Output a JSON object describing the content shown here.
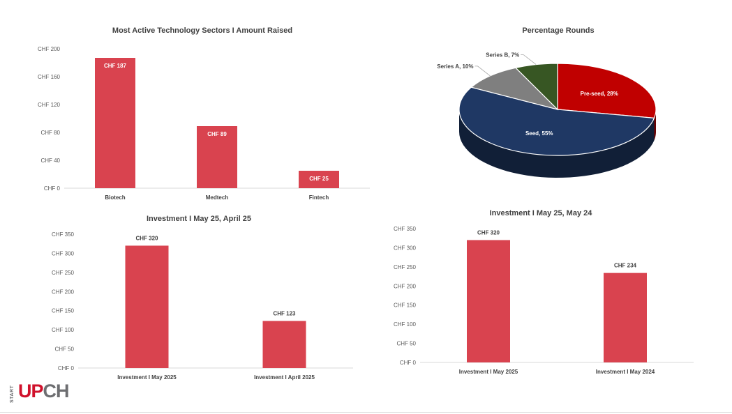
{
  "chart_data": [
    {
      "id": "sectors",
      "type": "bar",
      "title": "Most Active Technology Sectors I Amount Raised",
      "categories": [
        "Biotech",
        "Medtech",
        "Fintech"
      ],
      "values": [
        187,
        89,
        25
      ],
      "value_labels": [
        "CHF 187",
        "CHF 89",
        "CHF 25"
      ],
      "data_label_position": "inside-top",
      "yticks": [
        0,
        40,
        80,
        120,
        160,
        200
      ],
      "ytick_labels": [
        "CHF 0",
        "CHF 40",
        "CHF 80",
        "CHF 120",
        "CHF 160",
        "CHF 200"
      ],
      "ylim": [
        0,
        200
      ],
      "grid": false,
      "color": "#d9434f"
    },
    {
      "id": "rounds",
      "type": "pie",
      "title": "Percentage Rounds",
      "three_d": true,
      "slices": [
        {
          "label": "Pre-seed, 28%",
          "value": 28,
          "color": "#c00000"
        },
        {
          "label": "Seed, 55%",
          "value": 55,
          "color": "#1f3864"
        },
        {
          "label": "Series A, 10%",
          "value": 10,
          "color": "#7f7f7f"
        },
        {
          "label": "Series B, 7%",
          "value": 7,
          "color": "#375623"
        }
      ]
    },
    {
      "id": "may-april",
      "type": "bar",
      "title": "Investment I May 25, April 25",
      "categories": [
        "Investment I May 2025",
        "Investment I April 2025"
      ],
      "values": [
        320,
        123
      ],
      "value_labels": [
        "CHF 320",
        "CHF 123"
      ],
      "data_label_position": "outside-top",
      "yticks": [
        0,
        50,
        100,
        150,
        200,
        250,
        300,
        350
      ],
      "ytick_labels": [
        "CHF 0",
        "CHF 50",
        "CHF 100",
        "CHF 150",
        "CHF 200",
        "CHF 250",
        "CHF 300",
        "CHF 350"
      ],
      "ylim": [
        0,
        350
      ],
      "grid": false,
      "color": "#d9434f"
    },
    {
      "id": "may-may",
      "type": "bar",
      "title": "Investment I May 25, May 24",
      "categories": [
        "Investment I May 2025",
        "Investment I May 2024"
      ],
      "values": [
        320,
        234
      ],
      "value_labels": [
        "CHF 320",
        "CHF 234"
      ],
      "data_label_position": "outside-top",
      "yticks": [
        0,
        50,
        100,
        150,
        200,
        250,
        300,
        350
      ],
      "ytick_labels": [
        "CHF 0",
        "CHF 50",
        "CHF 100",
        "CHF 150",
        "CHF 200",
        "CHF 250",
        "CHF 300",
        "CHF 350"
      ],
      "ylim": [
        0,
        350
      ],
      "grid": false,
      "color": "#d9434f"
    }
  ],
  "logo": {
    "small_text": "START",
    "main_part1": "UP",
    "main_part2": "CH"
  }
}
